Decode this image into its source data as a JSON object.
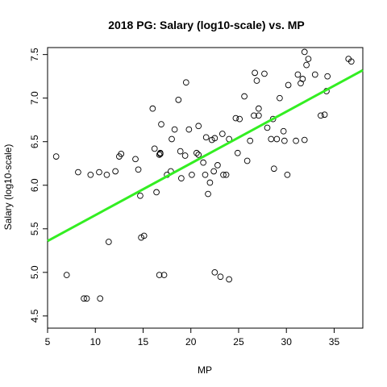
{
  "chart_data": {
    "type": "scatter",
    "title": "2018 PG: Salary (log10-scale) vs. MP",
    "xlabel": "MP",
    "ylabel": "Salary (log10-scale)",
    "xlim": [
      5.0,
      38.0
    ],
    "ylim": [
      4.36,
      7.58
    ],
    "x_ticks": [
      5,
      10,
      15,
      20,
      25,
      30,
      35
    ],
    "y_ticks": [
      4.5,
      5.0,
      5.5,
      6.0,
      6.5,
      7.0,
      7.5
    ],
    "y_tick_labels": [
      "4.5",
      "5.0",
      "5.5",
      "6.0",
      "6.5",
      "7.0",
      "7.5"
    ],
    "grid": false,
    "legend": "none",
    "colors": {
      "fit_line": "#33ee22",
      "points": "#000000"
    },
    "fit_line": {
      "x": [
        5.0,
        38.0
      ],
      "y": [
        5.36,
        7.32
      ]
    },
    "points": {
      "x": [
        5.9,
        7.0,
        8.2,
        8.8,
        9.1,
        9.5,
        10.4,
        10.5,
        11.2,
        11.4,
        12.1,
        12.5,
        12.7,
        14.2,
        14.5,
        14.7,
        14.8,
        15.1,
        16.0,
        16.2,
        16.4,
        16.7,
        16.8,
        16.8,
        16.9,
        16.7,
        17.2,
        17.5,
        17.9,
        18.0,
        18.3,
        18.7,
        18.9,
        19.0,
        19.4,
        19.5,
        19.8,
        20.1,
        20.6,
        20.8,
        20.8,
        21.3,
        21.5,
        21.6,
        21.8,
        22.0,
        22.2,
        22.4,
        22.5,
        22.5,
        22.8,
        23.1,
        23.3,
        23.4,
        23.7,
        24.0,
        24.0,
        24.7,
        24.9,
        25.1,
        25.6,
        25.9,
        26.2,
        26.6,
        26.7,
        26.9,
        27.1,
        27.1,
        27.7,
        28.0,
        28.4,
        28.6,
        28.7,
        29.0,
        29.3,
        29.7,
        29.8,
        30.1,
        30.2,
        31.0,
        31.2,
        31.5,
        31.7,
        31.9,
        31.9,
        32.1,
        32.3,
        33.0,
        33.6,
        34.0,
        34.2,
        34.3,
        36.5,
        36.8
      ],
      "y": [
        6.33,
        4.97,
        6.15,
        4.7,
        4.7,
        6.12,
        6.15,
        4.7,
        6.12,
        5.35,
        6.16,
        6.33,
        6.36,
        6.3,
        6.18,
        5.88,
        5.4,
        5.42,
        6.88,
        6.42,
        5.92,
        6.35,
        6.36,
        6.37,
        6.7,
        4.97,
        4.97,
        6.12,
        6.16,
        6.53,
        6.64,
        6.98,
        6.39,
        6.08,
        6.34,
        7.18,
        6.64,
        6.12,
        6.37,
        6.68,
        6.35,
        6.26,
        6.12,
        6.55,
        5.9,
        6.03,
        6.52,
        6.16,
        6.54,
        5.0,
        6.23,
        4.95,
        6.59,
        6.12,
        6.12,
        6.53,
        4.92,
        6.77,
        6.37,
        6.76,
        7.02,
        6.28,
        6.51,
        6.8,
        7.29,
        7.2,
        6.88,
        6.8,
        7.28,
        6.66,
        6.53,
        6.76,
        6.19,
        6.53,
        7.0,
        6.62,
        6.51,
        6.12,
        7.15,
        6.51,
        7.27,
        7.17,
        7.22,
        6.52,
        7.53,
        7.38,
        7.45,
        7.27,
        6.8,
        6.81,
        7.08,
        7.25,
        7.45,
        7.42
      ]
    }
  }
}
